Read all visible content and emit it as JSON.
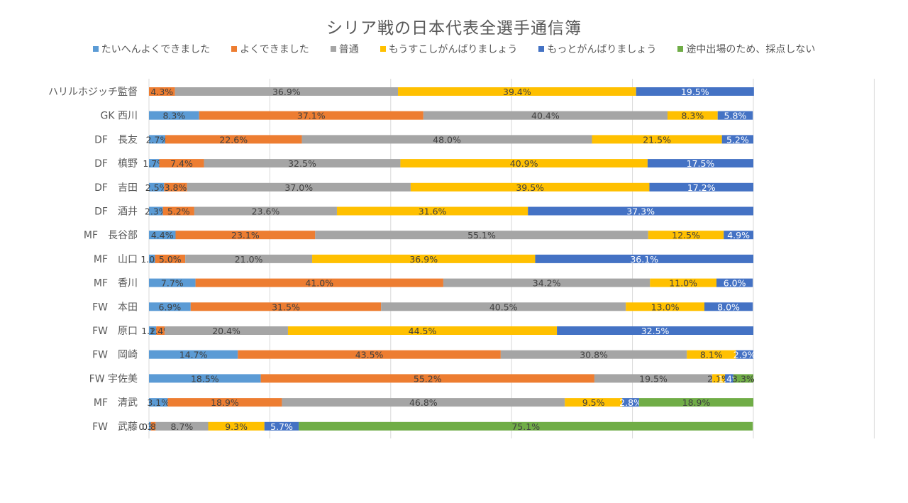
{
  "chart_data": {
    "type": "bar",
    "orientation": "horizontal",
    "stacked": "percent",
    "title": "シリア戦の日本代表全選手通信簿",
    "xlabel": "",
    "ylabel": "",
    "xlim": [
      0,
      1.2
    ],
    "grid": true,
    "x_tick_labels_visible": false,
    "legend_position": "top",
    "categories": [
      "ハリルホジッチ監督",
      "GK 西川",
      "DF　長友",
      "DF　槙野",
      "DF　吉田",
      "DF　酒井",
      "MF　長谷部",
      "MF　山口",
      "MF　香川",
      "FW　本田",
      "FW　原口",
      "FW　岡崎",
      "FW 宇佐美",
      "MF　清武",
      "FW　武藤"
    ],
    "series": [
      {
        "name": "たいへんよくできました",
        "color": "#5B9BD5",
        "label_color": "#404040",
        "values": [
          0,
          8.3,
          2.7,
          1.7,
          2.5,
          2.3,
          4.4,
          1.0,
          7.7,
          6.9,
          1.2,
          14.7,
          18.5,
          3.1,
          0.3
        ]
      },
      {
        "name": "よくできました",
        "color": "#ED7D31",
        "label_color": "#404040",
        "values": [
          4.3,
          37.1,
          22.6,
          7.4,
          3.8,
          5.2,
          23.1,
          5.0,
          41.0,
          31.5,
          1.4,
          43.5,
          55.2,
          18.9,
          0.8
        ]
      },
      {
        "name": "普通",
        "color": "#A5A5A5",
        "label_color": "#404040",
        "values": [
          36.9,
          40.4,
          48.0,
          32.5,
          37.0,
          23.6,
          55.1,
          21.0,
          34.2,
          40.5,
          20.4,
          30.8,
          19.5,
          46.8,
          8.7
        ]
      },
      {
        "name": "もうすこしがんばりましょう",
        "color": "#FFC000",
        "label_color": "#404040",
        "values": [
          39.4,
          8.3,
          21.5,
          40.9,
          39.5,
          31.6,
          12.5,
          36.9,
          11.0,
          13.0,
          44.5,
          8.1,
          2.1,
          9.5,
          9.3
        ]
      },
      {
        "name": "もっとがんばりましょう",
        "color": "#4472C4",
        "label_color": "#FFFFFF",
        "values": [
          19.5,
          5.8,
          5.2,
          17.5,
          17.2,
          37.3,
          4.9,
          36.1,
          6.0,
          8.0,
          32.5,
          2.9,
          1.4,
          2.8,
          5.7
        ]
      },
      {
        "name": "途中出場のため、採点しない",
        "color": "#70AD47",
        "label_color": "#404040",
        "values": [
          0,
          0,
          0,
          0,
          0,
          0,
          0,
          0,
          0,
          0,
          0,
          0,
          3.3,
          18.9,
          75.1
        ]
      }
    ],
    "value_format": "percent_1dp"
  }
}
